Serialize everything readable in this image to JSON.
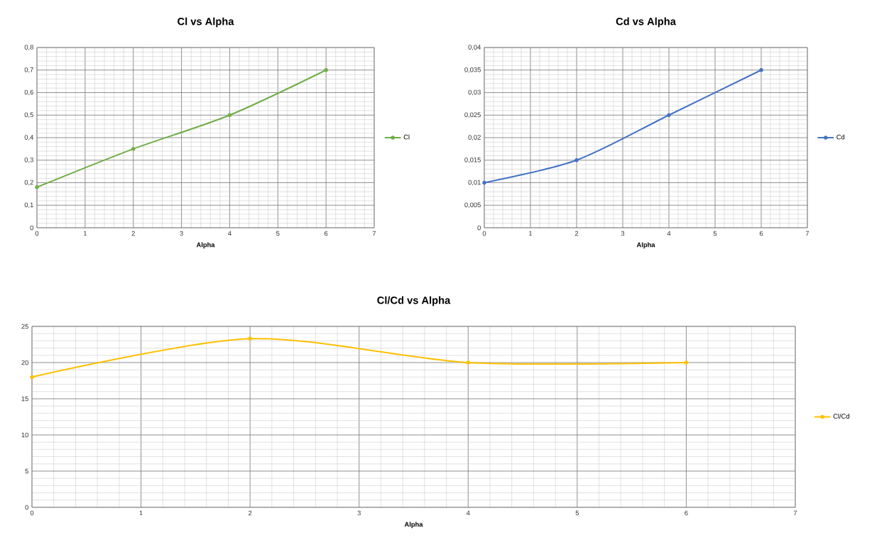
{
  "chart_data": [
    {
      "type": "line",
      "title": "Cl vs Alpha",
      "xlabel": "Alpha",
      "x": [
        0,
        2,
        4,
        6
      ],
      "series": [
        {
          "name": "Cl",
          "color": "#70ad47",
          "values": [
            0.18,
            0.35,
            0.5,
            0.7
          ]
        }
      ],
      "xlim": [
        0,
        7
      ],
      "xticks": [
        0,
        1,
        2,
        3,
        4,
        5,
        6,
        7
      ],
      "ylim": [
        0,
        0.8
      ],
      "yticks": [
        0,
        {
          "value": 0.1,
          "label": "0,1"
        },
        {
          "value": 0.2,
          "label": "0,2"
        },
        {
          "value": 0.3,
          "label": "0,3"
        },
        {
          "value": 0.4,
          "label": "0,4"
        },
        {
          "value": 0.5,
          "label": "0,5"
        },
        {
          "value": 0.6,
          "label": "0,6"
        },
        {
          "value": 0.7,
          "label": "0,7"
        },
        {
          "value": 0.8,
          "label": "0,8"
        }
      ],
      "grid": true,
      "legend": "right",
      "marker": "circle",
      "line_style": "solid"
    },
    {
      "type": "line",
      "title": "Cd vs Alpha",
      "xlabel": "Alpha",
      "x": [
        0,
        2,
        4,
        6
      ],
      "series": [
        {
          "name": "Cd",
          "color": "#4472c4",
          "values": [
            0.01,
            0.015,
            0.025,
            0.035
          ]
        }
      ],
      "xlim": [
        0,
        7
      ],
      "xticks": [
        0,
        1,
        2,
        3,
        4,
        5,
        6,
        7
      ],
      "ylim": [
        0,
        0.04
      ],
      "yticks": [
        0,
        {
          "value": 0.005,
          "label": "0,005"
        },
        {
          "value": 0.01,
          "label": "0,01"
        },
        {
          "value": 0.015,
          "label": "0,015"
        },
        {
          "value": 0.02,
          "label": "0,02"
        },
        {
          "value": 0.025,
          "label": "0,025"
        },
        {
          "value": 0.03,
          "label": "0,03"
        },
        {
          "value": 0.035,
          "label": "0,035"
        },
        {
          "value": 0.04,
          "label": "0,04"
        }
      ],
      "grid": true,
      "legend": "right",
      "marker": "circle",
      "line_style": "solid"
    },
    {
      "type": "line",
      "title": "Cl/Cd vs Alpha",
      "xlabel": "Alpha",
      "x": [
        0,
        2,
        4,
        6
      ],
      "series": [
        {
          "name": "Cl/Cd",
          "color": "#ffc000",
          "values": [
            18,
            23.3,
            20,
            20
          ]
        }
      ],
      "xlim": [
        0,
        7
      ],
      "xticks": [
        0,
        1,
        2,
        3,
        4,
        5,
        6,
        7
      ],
      "ylim": [
        0,
        25
      ],
      "yticks": [
        0,
        5,
        10,
        15,
        20,
        25
      ],
      "grid": true,
      "legend": "right",
      "marker": "circle",
      "line_style": "solid"
    }
  ]
}
